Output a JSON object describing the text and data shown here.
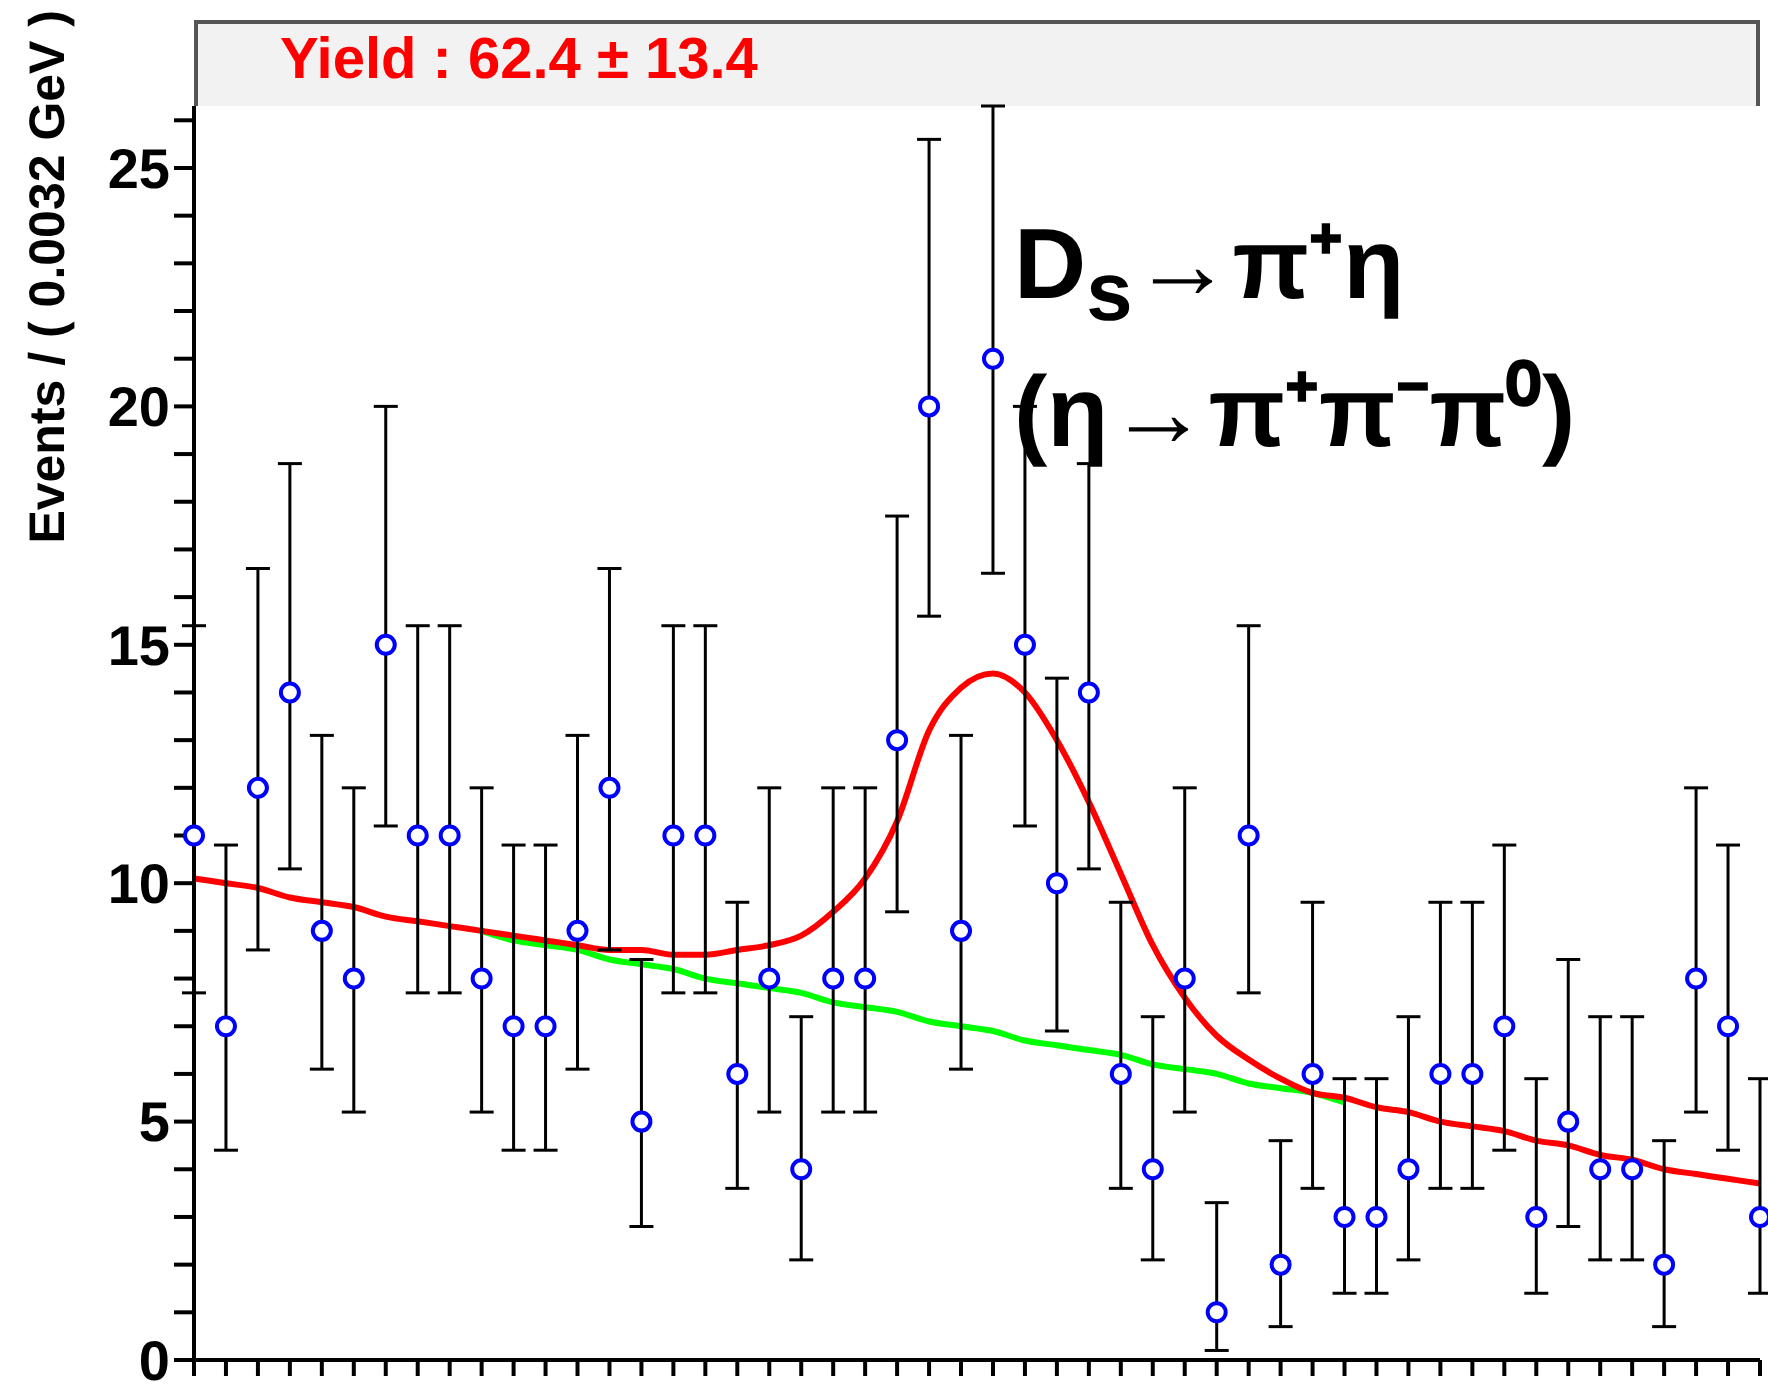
{
  "chart_data": {
    "type": "scatter",
    "ylabel": "Events / ( 0.0032 GeV )",
    "annotations": [
      "Yield : 62.4 ± 13.4",
      "D$_{s}$→π⁺η",
      "(η→π⁺π⁻π⁰)"
    ],
    "categories": [
      null,
      null,
      null,
      null,
      null,
      null,
      null,
      null,
      null,
      null,
      null,
      null,
      null,
      null,
      null,
      null,
      null,
      null,
      null,
      null,
      null,
      null,
      null,
      null,
      null,
      null,
      null,
      null,
      null,
      null,
      null,
      null,
      null,
      null,
      null,
      null,
      null,
      null,
      null,
      null,
      null,
      null,
      null,
      null,
      null,
      null,
      null,
      null,
      null,
      null
    ],
    "ylim": [
      0,
      26.3
    ],
    "yticks": [
      0,
      {
        "value": 1,
        "label": null
      },
      {
        "value": 2,
        "label": null
      },
      {
        "value": 3,
        "label": null
      },
      {
        "value": 4,
        "label": null
      },
      5,
      {
        "value": 6,
        "label": null
      },
      {
        "value": 7,
        "label": null
      },
      {
        "value": 8,
        "label": null
      },
      {
        "value": 9,
        "label": null
      },
      10,
      {
        "value": 11,
        "label": null
      },
      {
        "value": 12,
        "label": null
      },
      {
        "value": 13,
        "label": null
      },
      {
        "value": 14,
        "label": null
      },
      15,
      {
        "value": 16,
        "label": null
      },
      {
        "value": 17,
        "label": null
      },
      {
        "value": 18,
        "label": null
      },
      {
        "value": 19,
        "label": null
      },
      20,
      {
        "value": 21,
        "label": null
      },
      {
        "value": 22,
        "label": null
      },
      {
        "value": 23,
        "label": null
      },
      {
        "value": 24,
        "label": null
      },
      25,
      {
        "value": 26,
        "label": null
      }
    ],
    "grid": false,
    "legend": false,
    "tick_labels": "y",
    "series": [
      {
        "type": "line",
        "color": "#00ff00",
        "line_style": "solid",
        "values": [
          null,
          null,
          null,
          null,
          null,
          null,
          null,
          null,
          null,
          9.0,
          8.8,
          8.7,
          8.6,
          8.4,
          8.3,
          8.2,
          8.0,
          7.9,
          7.8,
          7.7,
          7.5,
          7.4,
          7.3,
          7.1,
          7.0,
          6.9,
          6.7,
          6.6,
          6.5,
          6.4,
          6.2,
          6.1,
          6.0,
          5.8,
          5.7,
          5.6,
          5.4,
          null,
          null,
          null,
          null,
          null,
          null,
          null,
          null,
          null,
          null,
          null,
          null,
          null
        ]
      },
      {
        "type": "line",
        "color": "#ff0000",
        "line_style": "solid",
        "values": [
          10.1,
          10.0,
          9.9,
          9.7,
          9.6,
          9.5,
          9.3,
          9.2,
          9.1,
          9.0,
          8.9,
          8.8,
          8.7,
          8.6,
          8.6,
          8.5,
          8.5,
          8.6,
          8.7,
          8.9,
          9.4,
          10.1,
          11.3,
          13.2,
          14.1,
          14.4,
          14.0,
          13.0,
          11.7,
          10.2,
          8.7,
          7.6,
          6.8,
          6.3,
          5.9,
          5.6,
          5.5,
          5.3,
          5.2,
          5.0,
          4.9,
          4.8,
          4.6,
          4.5,
          4.3,
          4.2,
          4.0,
          3.9,
          3.8,
          3.7
        ]
      },
      {
        "color": "#0000ff",
        "marker": "circle",
        "values": [
          11,
          7,
          12,
          14,
          9,
          8,
          15,
          11,
          11,
          8,
          7,
          7,
          9,
          12,
          5,
          11,
          11,
          6,
          8,
          4,
          8,
          8,
          13,
          20,
          9,
          21,
          15,
          10,
          14,
          6,
          4,
          8,
          1,
          11,
          2,
          6,
          3,
          3,
          4,
          6,
          6,
          7,
          3,
          5,
          4,
          4,
          2,
          8,
          7,
          3
        ],
        "errors": [
          [
            7.7,
            15.4
          ],
          [
            4.4,
            10.8
          ],
          [
            8.6,
            16.6
          ],
          [
            10.3,
            18.8
          ],
          [
            6.1,
            13.1
          ],
          [
            5.2,
            12.0
          ],
          [
            11.2,
            20.0
          ],
          [
            7.7,
            15.4
          ],
          [
            7.7,
            15.4
          ],
          [
            5.2,
            12.0
          ],
          [
            4.4,
            10.8
          ],
          [
            4.4,
            10.8
          ],
          [
            6.1,
            13.1
          ],
          [
            8.6,
            16.6
          ],
          [
            2.8,
            8.4
          ],
          [
            7.7,
            15.4
          ],
          [
            7.7,
            15.4
          ],
          [
            3.6,
            9.6
          ],
          [
            5.2,
            12.0
          ],
          [
            2.1,
            7.2
          ],
          [
            5.2,
            12.0
          ],
          [
            5.2,
            12.0
          ],
          [
            9.4,
            17.7
          ],
          [
            15.6,
            25.6
          ],
          [
            6.1,
            13.1
          ],
          [
            16.5,
            26.3
          ],
          [
            11.2,
            20.0
          ],
          [
            6.9,
            14.3
          ],
          [
            10.3,
            18.8
          ],
          [
            3.6,
            9.6
          ],
          [
            2.1,
            7.2
          ],
          [
            5.2,
            12.0
          ],
          [
            0.2,
            3.3
          ],
          [
            7.7,
            15.4
          ],
          [
            0.7,
            4.6
          ],
          [
            3.6,
            9.6
          ],
          [
            1.4,
            5.9
          ],
          [
            1.4,
            5.9
          ],
          [
            2.1,
            7.2
          ],
          [
            3.6,
            9.6
          ],
          [
            3.6,
            9.6
          ],
          [
            4.4,
            10.8
          ],
          [
            1.4,
            5.9
          ],
          [
            2.8,
            8.4
          ],
          [
            2.1,
            7.2
          ],
          [
            2.1,
            7.2
          ],
          [
            0.7,
            4.6
          ],
          [
            5.2,
            12.0
          ],
          [
            4.4,
            10.8
          ],
          [
            1.4,
            5.9
          ]
        ]
      }
    ]
  }
}
